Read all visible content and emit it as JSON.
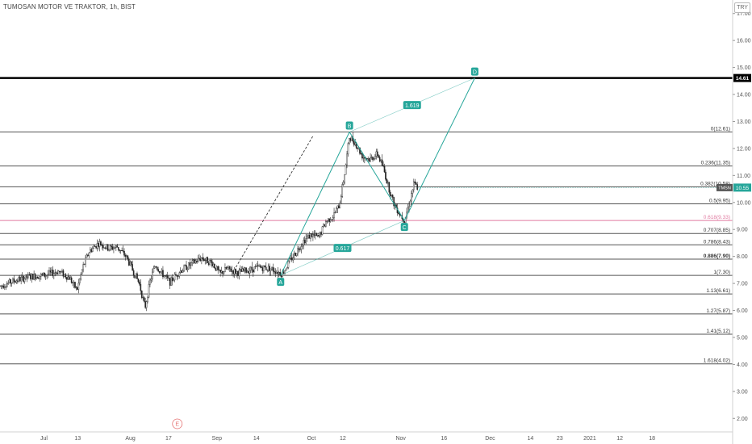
{
  "header": {
    "symbol_line": "TUMOSAN MOTOR VE TRAKTOR, 1h, BIST",
    "currency": "TRY"
  },
  "colors": {
    "candle": "#222222",
    "pattern": "#26a69a",
    "fib_line": "#555555",
    "fib_highlight": "#e07aa0",
    "resistance": "#000000",
    "price_tag": "#26a69a",
    "events": "#e57373"
  },
  "chart_data": {
    "type": "candlestick",
    "y_axis": {
      "min": 1.5,
      "max": 17.5,
      "ticks": [
        "17.00",
        "16.00",
        "15.00",
        "14.00",
        "13.00",
        "12.00",
        "11.00",
        "10.00",
        "9.00",
        "8.00",
        "7.00",
        "6.00",
        "5.00",
        "4.00",
        "3.00",
        "2.00"
      ]
    },
    "x_axis": {
      "ticks": [
        {
          "label": "Jul",
          "t": 0.06
        },
        {
          "label": "13",
          "t": 0.106
        },
        {
          "label": "Aug",
          "t": 0.178
        },
        {
          "label": "17",
          "t": 0.23
        },
        {
          "label": "Sep",
          "t": 0.296
        },
        {
          "label": "14",
          "t": 0.35
        },
        {
          "label": "Oct",
          "t": 0.425
        },
        {
          "label": "12",
          "t": 0.468
        },
        {
          "label": "Nov",
          "t": 0.547
        },
        {
          "label": "16",
          "t": 0.606
        },
        {
          "label": "Dec",
          "t": 0.669
        },
        {
          "label": "14",
          "t": 0.724
        },
        {
          "label": "23",
          "t": 0.764
        },
        {
          "label": "2021",
          "t": 0.805
        },
        {
          "label": "12",
          "t": 0.846
        },
        {
          "label": "18",
          "t": 0.89
        }
      ]
    },
    "price_path": [
      {
        "t": 0.0,
        "p": 6.9
      },
      {
        "t": 0.02,
        "p": 7.1
      },
      {
        "t": 0.04,
        "p": 7.25
      },
      {
        "t": 0.06,
        "p": 7.3
      },
      {
        "t": 0.08,
        "p": 7.45
      },
      {
        "t": 0.095,
        "p": 7.2
      },
      {
        "t": 0.105,
        "p": 6.75
      },
      {
        "t": 0.113,
        "p": 7.6
      },
      {
        "t": 0.122,
        "p": 8.2
      },
      {
        "t": 0.135,
        "p": 8.5
      },
      {
        "t": 0.148,
        "p": 8.3
      },
      {
        "t": 0.16,
        "p": 8.35
      },
      {
        "t": 0.172,
        "p": 8.0
      },
      {
        "t": 0.18,
        "p": 7.55
      },
      {
        "t": 0.19,
        "p": 7.0
      },
      {
        "t": 0.198,
        "p": 6.1
      },
      {
        "t": 0.205,
        "p": 7.1
      },
      {
        "t": 0.212,
        "p": 7.7
      },
      {
        "t": 0.22,
        "p": 7.4
      },
      {
        "t": 0.232,
        "p": 7.05
      },
      {
        "t": 0.245,
        "p": 7.45
      },
      {
        "t": 0.26,
        "p": 7.7
      },
      {
        "t": 0.275,
        "p": 7.95
      },
      {
        "t": 0.29,
        "p": 7.75
      },
      {
        "t": 0.3,
        "p": 7.35
      },
      {
        "t": 0.31,
        "p": 7.55
      },
      {
        "t": 0.325,
        "p": 7.4
      },
      {
        "t": 0.34,
        "p": 7.5
      },
      {
        "t": 0.355,
        "p": 7.6
      },
      {
        "t": 0.37,
        "p": 7.55
      },
      {
        "t": 0.385,
        "p": 7.35
      },
      {
        "t": 0.395,
        "p": 7.8
      },
      {
        "t": 0.405,
        "p": 8.2
      },
      {
        "t": 0.415,
        "p": 8.6
      },
      {
        "t": 0.425,
        "p": 8.8
      },
      {
        "t": 0.435,
        "p": 8.7
      },
      {
        "t": 0.445,
        "p": 9.3
      },
      {
        "t": 0.455,
        "p": 9.5
      },
      {
        "t": 0.463,
        "p": 9.9
      },
      {
        "t": 0.47,
        "p": 11.0
      },
      {
        "t": 0.477,
        "p": 12.45
      },
      {
        "t": 0.485,
        "p": 12.2
      },
      {
        "t": 0.495,
        "p": 11.7
      },
      {
        "t": 0.505,
        "p": 11.6
      },
      {
        "t": 0.515,
        "p": 11.8
      },
      {
        "t": 0.523,
        "p": 11.3
      },
      {
        "t": 0.53,
        "p": 10.6
      },
      {
        "t": 0.537,
        "p": 10.0
      },
      {
        "t": 0.545,
        "p": 9.6
      },
      {
        "t": 0.552,
        "p": 9.35
      },
      {
        "t": 0.558,
        "p": 9.9
      },
      {
        "t": 0.565,
        "p": 10.7
      },
      {
        "t": 0.57,
        "p": 10.55
      }
    ],
    "fib_levels": [
      {
        "label": "0(12.61)",
        "value": 12.61
      },
      {
        "label": "0.236(11.35)",
        "value": 11.35
      },
      {
        "label": "0.382(10.58)",
        "value": 10.58
      },
      {
        "label": "0.5(9.95)",
        "value": 9.95
      },
      {
        "label": "0.618(9.33)",
        "value": 9.33,
        "highlight": true
      },
      {
        "label": "0.707(8.85)",
        "value": 8.85
      },
      {
        "label": "0.786(8.43)",
        "value": 8.43
      },
      {
        "label": "0.886(7.90)",
        "value": 7.9,
        "bold": true
      },
      {
        "label": "1(7.30)",
        "value": 7.3
      },
      {
        "label": "1.13(6.61)",
        "value": 6.61
      },
      {
        "label": "1.27(5.87)",
        "value": 5.87
      },
      {
        "label": "1.41(5.12)",
        "value": 5.12
      },
      {
        "label": "1.618(4.02)",
        "value": 4.02
      }
    ],
    "resistance": {
      "value": 14.61,
      "label": "14.61"
    },
    "last_price": {
      "value": 10.55,
      "symbol": "TMSN",
      "label": "10.55"
    },
    "pattern_points": [
      {
        "name": "A",
        "t": 0.383,
        "p": 7.3
      },
      {
        "name": "B",
        "t": 0.477,
        "p": 12.61
      },
      {
        "name": "C",
        "t": 0.552,
        "p": 9.33
      },
      {
        "name": "D",
        "t": 0.648,
        "p": 14.61
      }
    ],
    "ratio_labels": [
      {
        "label": "0.617",
        "between": [
          "A",
          "C"
        ]
      },
      {
        "label": "1.619",
        "between": [
          "B",
          "D"
        ]
      }
    ],
    "dashed_trend": [
      {
        "t": 0.322,
        "p": 7.6
      },
      {
        "t": 0.428,
        "p": 12.5
      }
    ],
    "events": [
      {
        "label": "E",
        "t": 0.242
      }
    ]
  }
}
